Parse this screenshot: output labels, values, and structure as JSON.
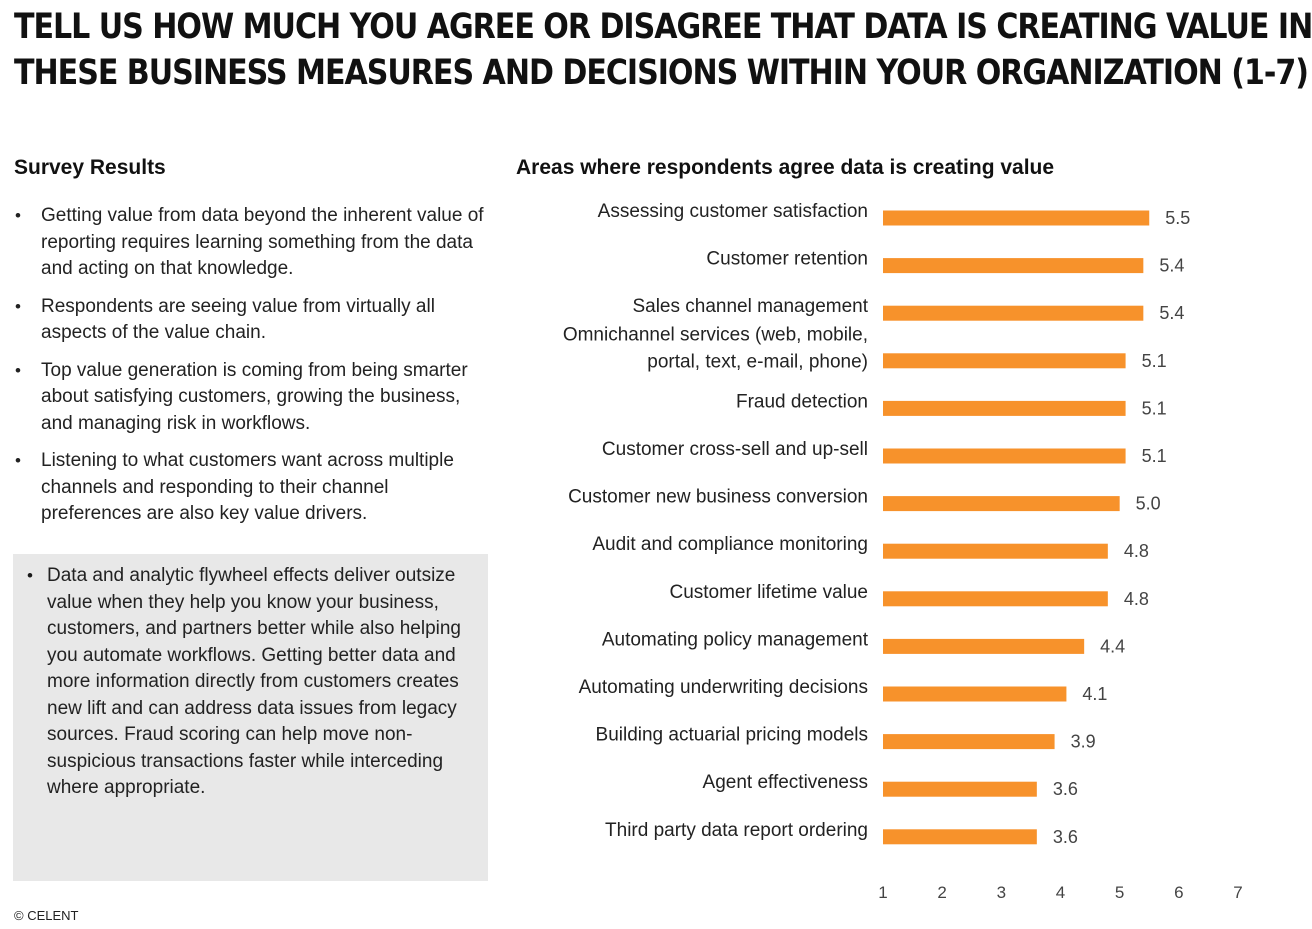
{
  "headline": {
    "line1": "TELL US HOW MUCH YOU AGREE OR DISAGREE THAT DATA IS CREATING VALUE IN",
    "line2": "THESE BUSINESS MEASURES AND DECISIONS WITHIN YOUR ORGANIZATION (1-7)"
  },
  "survey": {
    "heading": "Survey Results",
    "bullets": [
      "Getting value from data beyond the inherent value of reporting requires learning something from the data and acting on that knowledge.",
      "Respondents are seeing value from virtually all aspects of the value chain.",
      "Top value generation is coming from being smarter about satisfying customers, growing the business, and managing risk in workflows.",
      "Listening to what customers want across multiple channels and responding to their channel preferences are also key value drivers."
    ],
    "callout": "Data and analytic flywheel effects deliver outsize value when they help you know your business, customers, and partners better while also helping you automate workflows. Getting better data and more information directly from customers creates new lift and can address data issues from legacy sources. Fraud scoring can help move non-suspicious transactions faster while interceding where appropriate."
  },
  "copyright": "© CELENT",
  "colors": {
    "bar": "#f7922b"
  },
  "chart_data": {
    "type": "bar",
    "orientation": "horizontal",
    "title": "Areas where respondents agree data is creating value",
    "categories": [
      [
        "Assessing customer satisfaction"
      ],
      [
        "Customer retention"
      ],
      [
        "Sales channel management"
      ],
      [
        "Omnichannel services (web, mobile,",
        "portal, text, e-mail, phone)"
      ],
      [
        "Fraud detection"
      ],
      [
        "Customer cross-sell and up-sell"
      ],
      [
        "Customer new business conversion"
      ],
      [
        "Audit and compliance monitoring"
      ],
      [
        "Customer lifetime value"
      ],
      [
        "Automating policy management"
      ],
      [
        "Automating underwriting decisions"
      ],
      [
        "Building actuarial pricing models"
      ],
      [
        "Agent effectiveness"
      ],
      [
        "Third party data report ordering"
      ]
    ],
    "values": [
      5.5,
      5.4,
      5.4,
      5.1,
      5.1,
      5.1,
      5.0,
      4.8,
      4.8,
      4.4,
      4.1,
      3.9,
      3.6,
      3.6
    ],
    "value_labels": [
      "5.5",
      "5.4",
      "5.4",
      "5.1",
      "5.1",
      "5.1",
      "5.0",
      "4.8",
      "4.8",
      "4.4",
      "4.1",
      "3.9",
      "3.6",
      "3.6"
    ],
    "xlim": [
      1,
      7
    ],
    "xticks": [
      "1",
      "2",
      "3",
      "4",
      "5",
      "6",
      "7"
    ],
    "grid": false,
    "legend": "none"
  }
}
